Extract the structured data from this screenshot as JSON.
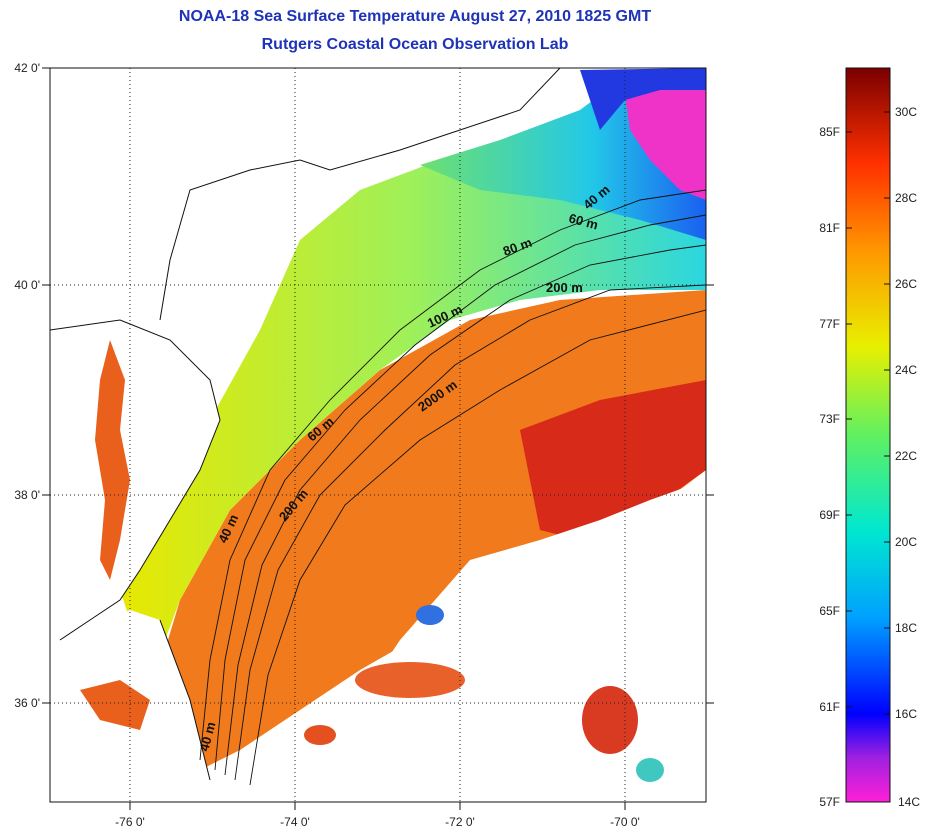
{
  "title": "NOAA-18 Sea Surface Temperature August 27, 2010 1825 GMT",
  "subtitle": "Rutgers Coastal Ocean Observation Lab",
  "axes": {
    "lat_ticks": [
      "42 0'",
      "40 0'",
      "38 0'",
      "36 0'"
    ],
    "lon_ticks": [
      "-76 0'",
      "-74 0'",
      "-72 0'",
      "-70 0'"
    ]
  },
  "depth_labels": [
    "40 m",
    "60 m",
    "80 m",
    "200 m",
    "100 m",
    "2000 m",
    "60 m",
    "200 m",
    "40 m",
    "40 m"
  ],
  "colorbar": {
    "fahrenheit": [
      "85F",
      "81F",
      "77F",
      "73F",
      "69F",
      "65F",
      "61F",
      "57F"
    ],
    "celsius": [
      "30C",
      "28C",
      "26C",
      "24C",
      "22C",
      "20C",
      "18C",
      "16C",
      "14C"
    ]
  },
  "colors": {
    "title": "#1f33b8",
    "warm": "#e8521a",
    "hot": "#d42a1c",
    "cool": "#7ee07a",
    "cold": "#2540d8",
    "coldest": "#ff2ad0"
  }
}
